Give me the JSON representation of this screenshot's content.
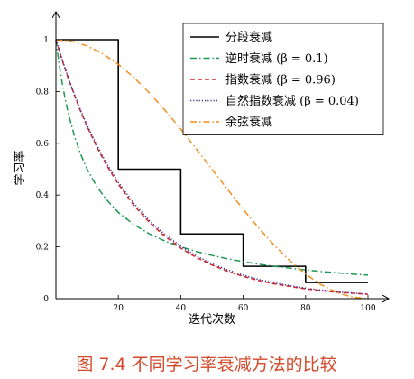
{
  "chart_data": {
    "type": "line",
    "xlabel": "迭代次数",
    "ylabel": "学习率",
    "xlim": [
      0,
      100
    ],
    "ylim": [
      0,
      1
    ],
    "x_ticks": [
      20,
      40,
      60,
      80,
      100
    ],
    "y_ticks": [
      0,
      0.2,
      0.4,
      0.6,
      0.8,
      1
    ],
    "x_tick_labels": [
      "20",
      "40",
      "60",
      "80",
      "100"
    ],
    "y_tick_labels": [
      "0",
      "0.2",
      "0.4",
      "0.6",
      "0.8",
      "1"
    ],
    "grid": false,
    "legend_position": "top-right",
    "series": [
      {
        "name": "分段衰减",
        "style": "solid",
        "color": "#000000",
        "x": [
          0,
          20,
          20,
          40,
          40,
          60,
          60,
          80,
          80,
          100
        ],
        "y": [
          1,
          1,
          0.5,
          0.5,
          0.25,
          0.25,
          0.125,
          0.125,
          0.0625,
          0.0625
        ]
      },
      {
        "name": "逆时衰减 (β = 0.1)",
        "style": "dashdot",
        "color": "#1a9850",
        "x": [
          0,
          1,
          2,
          3,
          4,
          6,
          8,
          10,
          13,
          16,
          20,
          25,
          30,
          35,
          40,
          45,
          50,
          55,
          60,
          65,
          70,
          75,
          80,
          85,
          90,
          95,
          100
        ],
        "y": [
          1,
          0.909,
          0.833,
          0.769,
          0.714,
          0.625,
          0.556,
          0.5,
          0.435,
          0.385,
          0.333,
          0.286,
          0.25,
          0.222,
          0.2,
          0.182,
          0.167,
          0.154,
          0.143,
          0.133,
          0.125,
          0.118,
          0.111,
          0.105,
          0.1,
          0.095,
          0.091
        ]
      },
      {
        "name": "指数衰减 (β = 0.96)",
        "style": "dashed",
        "color": "#d62728",
        "x": [
          0,
          2,
          4,
          6,
          8,
          10,
          13,
          16,
          20,
          25,
          30,
          35,
          40,
          45,
          50,
          55,
          60,
          65,
          70,
          75,
          80,
          85,
          90,
          95,
          100
        ],
        "y": [
          1,
          0.922,
          0.849,
          0.783,
          0.721,
          0.665,
          0.588,
          0.52,
          0.442,
          0.36,
          0.294,
          0.24,
          0.195,
          0.159,
          0.13,
          0.106,
          0.086,
          0.07,
          0.057,
          0.047,
          0.038,
          0.031,
          0.025,
          0.021,
          0.017
        ]
      },
      {
        "name": "自然指数衰减 (β = 0.04)",
        "style": "dotted",
        "color": "#3d2b8f",
        "x": [
          0,
          2,
          4,
          6,
          8,
          10,
          13,
          16,
          20,
          25,
          30,
          35,
          40,
          45,
          50,
          55,
          60,
          65,
          70,
          75,
          80,
          85,
          90,
          95,
          100
        ],
        "y": [
          1,
          0.923,
          0.852,
          0.787,
          0.726,
          0.67,
          0.595,
          0.527,
          0.449,
          0.368,
          0.301,
          0.247,
          0.202,
          0.165,
          0.135,
          0.111,
          0.091,
          0.074,
          0.061,
          0.05,
          0.041,
          0.033,
          0.027,
          0.022,
          0.018
        ]
      },
      {
        "name": "余弦衰减",
        "style": "dashdot",
        "color": "#f28e1c",
        "x": [
          0,
          5,
          10,
          15,
          20,
          25,
          30,
          35,
          40,
          45,
          50,
          55,
          60,
          65,
          70,
          75,
          80,
          85,
          90,
          95,
          100
        ],
        "y": [
          1,
          0.994,
          0.976,
          0.946,
          0.905,
          0.854,
          0.794,
          0.727,
          0.655,
          0.578,
          0.5,
          0.422,
          0.345,
          0.273,
          0.206,
          0.146,
          0.095,
          0.054,
          0.024,
          0.006,
          0
        ]
      }
    ]
  },
  "caption": "图 7.4   不同学习率衰减方法的比较"
}
